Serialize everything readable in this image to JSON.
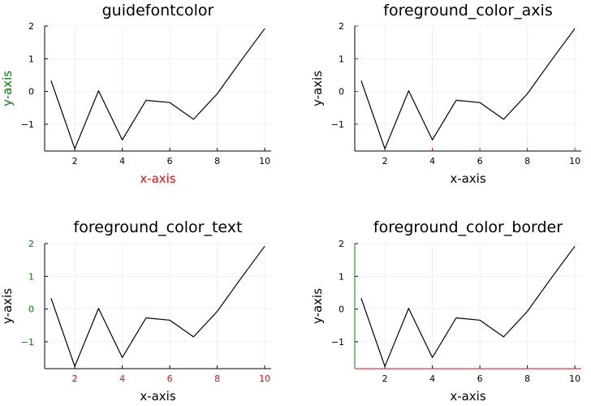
{
  "chart_data": [
    {
      "type": "line",
      "title": "guidefontcolor",
      "xlabel": "x-axis",
      "ylabel": "y-axis",
      "xlim": [
        0.73,
        10.27
      ],
      "ylim": [
        -1.82,
        2.0
      ],
      "xticks": [
        "2",
        "4",
        "6",
        "8",
        "10"
      ],
      "yticks": [
        "−1",
        "0",
        "1",
        "2"
      ],
      "grid": true,
      "legend": "none",
      "colors": {
        "xlabel": "#ff0000",
        "ylabel": "#008000",
        "xticks": "#000000",
        "yticks": "#000000",
        "axis_x": "#000000",
        "axis_y": "#000000",
        "line": "#000000"
      },
      "x": [
        1,
        2,
        3,
        4,
        5,
        6,
        7,
        8,
        9,
        10
      ],
      "y": [
        0.33,
        -1.75,
        0.02,
        -1.48,
        -0.27,
        -0.34,
        -0.85,
        -0.07,
        0.94,
        1.92
      ]
    },
    {
      "type": "line",
      "title": "foreground_color_axis",
      "xlabel": "x-axis",
      "ylabel": "y-axis",
      "xlim": [
        0.73,
        10.27
      ],
      "ylim": [
        -1.82,
        2.0
      ],
      "xticks": [
        "2",
        "4",
        "6",
        "8",
        "10"
      ],
      "yticks": [
        "−1",
        "0",
        "1",
        "2"
      ],
      "grid": true,
      "legend": "none",
      "colors": {
        "xlabel": "#000000",
        "ylabel": "#000000",
        "xticks": "#000000",
        "yticks": "#000000",
        "axis_x": "#000000",
        "axis_y": "#000000",
        "tickmarks_x": "#ff0000",
        "tickmarks_y": "#008000",
        "line": "#000000"
      },
      "x": [
        1,
        2,
        3,
        4,
        5,
        6,
        7,
        8,
        9,
        10
      ],
      "y": [
        0.33,
        -1.75,
        0.02,
        -1.48,
        -0.27,
        -0.34,
        -0.85,
        -0.07,
        0.94,
        1.92
      ]
    },
    {
      "type": "line",
      "title": "foreground_color_text",
      "xlabel": "x-axis",
      "ylabel": "y-axis",
      "xlim": [
        0.73,
        10.27
      ],
      "ylim": [
        -1.82,
        2.0
      ],
      "xticks": [
        "2",
        "4",
        "6",
        "8",
        "10"
      ],
      "yticks": [
        "−1",
        "0",
        "1",
        "2"
      ],
      "grid": true,
      "legend": "none",
      "colors": {
        "xlabel": "#000000",
        "ylabel": "#000000",
        "xticks": "#ff0000",
        "yticks": "#008000",
        "axis_x": "#000000",
        "axis_y": "#000000",
        "line": "#000000"
      },
      "x": [
        1,
        2,
        3,
        4,
        5,
        6,
        7,
        8,
        9,
        10
      ],
      "y": [
        0.33,
        -1.75,
        0.02,
        -1.48,
        -0.27,
        -0.34,
        -0.85,
        -0.07,
        0.94,
        1.92
      ]
    },
    {
      "type": "line",
      "title": "foreground_color_border",
      "xlabel": "x-axis",
      "ylabel": "y-axis",
      "xlim": [
        0.73,
        10.27
      ],
      "ylim": [
        -1.82,
        2.0
      ],
      "xticks": [
        "2",
        "4",
        "6",
        "8",
        "10"
      ],
      "yticks": [
        "−1",
        "0",
        "1",
        "2"
      ],
      "grid": true,
      "legend": "none",
      "colors": {
        "xlabel": "#000000",
        "ylabel": "#000000",
        "xticks": "#000000",
        "yticks": "#000000",
        "axis_x": "#ff0000",
        "axis_y": "#008000",
        "line": "#000000"
      },
      "x": [
        1,
        2,
        3,
        4,
        5,
        6,
        7,
        8,
        9,
        10
      ],
      "y": [
        0.33,
        -1.75,
        0.02,
        -1.48,
        -0.27,
        -0.34,
        -0.85,
        -0.07,
        0.94,
        1.92
      ]
    }
  ]
}
